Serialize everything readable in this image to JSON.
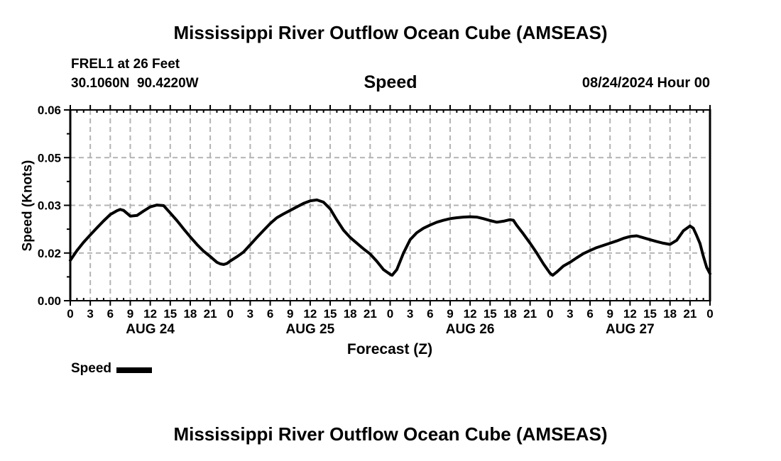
{
  "header": {
    "title": "Mississippi River Outflow Ocean Cube (AMSEAS)",
    "station": "FREL1 at 26 Feet",
    "coords": "30.1060N  90.4220W",
    "plot_label": "Speed",
    "datetime": "08/24/2024 Hour 00"
  },
  "axes": {
    "ylabel": "Speed (Knots)",
    "xlabel": "Forecast (Z)"
  },
  "legend": {
    "label": "Speed",
    "color": "#000000"
  },
  "footer": {
    "title": "Mississippi River Outflow Ocean Cube (AMSEAS)"
  },
  "colors": {
    "line": "#000000",
    "grid": "#b3b3b3",
    "background": "#ffffff",
    "text": "#000000"
  },
  "chart_data": {
    "type": "line",
    "title": "Mississippi River Outflow Ocean Cube (AMSEAS)",
    "station": "FREL1 at 26 Feet",
    "location": "30.1060N  90.4220W",
    "variable": "Speed",
    "forecast_start": "08/24/2024 Hour 00",
    "xlabel": "Forecast (Z)",
    "ylabel": "Speed (Knots)",
    "xlim_hours": [
      0,
      96
    ],
    "ylim": [
      0,
      0.06
    ],
    "grid": "dashed-gray",
    "legend_position": "bottom-left",
    "y_ticks": [
      {
        "value": 0.0,
        "label": "0.00"
      },
      {
        "value": 0.015,
        "label": "0.02"
      },
      {
        "value": 0.03,
        "label": "0.03"
      },
      {
        "value": 0.045,
        "label": "0.05"
      },
      {
        "value": 0.06,
        "label": "0.06"
      }
    ],
    "y_minor_tick_values": [
      0.0075,
      0.0225,
      0.0375,
      0.0525
    ],
    "x_ticks": [
      {
        "hour": 0,
        "label": "0"
      },
      {
        "hour": 3,
        "label": "3"
      },
      {
        "hour": 6,
        "label": "6"
      },
      {
        "hour": 9,
        "label": "9"
      },
      {
        "hour": 12,
        "label": "12"
      },
      {
        "hour": 15,
        "label": "15"
      },
      {
        "hour": 18,
        "label": "18"
      },
      {
        "hour": 21,
        "label": "21"
      },
      {
        "hour": 24,
        "label": "0"
      },
      {
        "hour": 27,
        "label": "3"
      },
      {
        "hour": 30,
        "label": "6"
      },
      {
        "hour": 33,
        "label": "9"
      },
      {
        "hour": 36,
        "label": "12"
      },
      {
        "hour": 39,
        "label": "15"
      },
      {
        "hour": 42,
        "label": "18"
      },
      {
        "hour": 45,
        "label": "21"
      },
      {
        "hour": 48,
        "label": "0"
      },
      {
        "hour": 51,
        "label": "3"
      },
      {
        "hour": 54,
        "label": "6"
      },
      {
        "hour": 57,
        "label": "9"
      },
      {
        "hour": 60,
        "label": "12"
      },
      {
        "hour": 63,
        "label": "15"
      },
      {
        "hour": 66,
        "label": "18"
      },
      {
        "hour": 69,
        "label": "21"
      },
      {
        "hour": 72,
        "label": "0"
      },
      {
        "hour": 75,
        "label": "3"
      },
      {
        "hour": 78,
        "label": "6"
      },
      {
        "hour": 81,
        "label": "9"
      },
      {
        "hour": 84,
        "label": "12"
      },
      {
        "hour": 87,
        "label": "15"
      },
      {
        "hour": 90,
        "label": "18"
      },
      {
        "hour": 93,
        "label": "21"
      },
      {
        "hour": 96,
        "label": "0"
      }
    ],
    "x_minor_tick_step_hours": 1,
    "day_labels": [
      {
        "hour": 12,
        "label": "AUG 24"
      },
      {
        "hour": 36,
        "label": "AUG 25"
      },
      {
        "hour": 60,
        "label": "AUG 26"
      },
      {
        "hour": 84,
        "label": "AUG 27"
      }
    ],
    "series": [
      {
        "name": "Speed",
        "color": "#000000",
        "points": [
          [
            0,
            0.0127
          ],
          [
            1,
            0.0158
          ],
          [
            2,
            0.0184
          ],
          [
            3,
            0.0207
          ],
          [
            4,
            0.0229
          ],
          [
            5,
            0.0251
          ],
          [
            6,
            0.0271
          ],
          [
            7,
            0.0283
          ],
          [
            7.5,
            0.0287
          ],
          [
            8,
            0.0284
          ],
          [
            9,
            0.0266
          ],
          [
            10,
            0.0268
          ],
          [
            11,
            0.0282
          ],
          [
            12,
            0.0295
          ],
          [
            13,
            0.0301
          ],
          [
            14,
            0.0299
          ],
          [
            15,
            0.0276
          ],
          [
            16,
            0.0252
          ],
          [
            17,
            0.0226
          ],
          [
            18,
            0.0201
          ],
          [
            19,
            0.0177
          ],
          [
            20,
            0.0156
          ],
          [
            21,
            0.0139
          ],
          [
            22,
            0.0121
          ],
          [
            22.5,
            0.0116
          ],
          [
            23,
            0.0114
          ],
          [
            23.5,
            0.0117
          ],
          [
            24,
            0.0125
          ],
          [
            25,
            0.0138
          ],
          [
            26,
            0.0153
          ],
          [
            27,
            0.0176
          ],
          [
            28,
            0.0199
          ],
          [
            29,
            0.0221
          ],
          [
            30,
            0.0243
          ],
          [
            31,
            0.0261
          ],
          [
            32,
            0.0273
          ],
          [
            33,
            0.0284
          ],
          [
            34,
            0.0295
          ],
          [
            35,
            0.0306
          ],
          [
            36,
            0.0314
          ],
          [
            37,
            0.0317
          ],
          [
            38,
            0.031
          ],
          [
            39,
            0.0289
          ],
          [
            40,
            0.0254
          ],
          [
            41,
            0.0222
          ],
          [
            42,
            0.0199
          ],
          [
            43,
            0.0181
          ],
          [
            44,
            0.0163
          ],
          [
            45,
            0.0147
          ],
          [
            46,
            0.0124
          ],
          [
            47,
            0.0098
          ],
          [
            48,
            0.0083
          ],
          [
            48.3,
            0.008
          ],
          [
            49,
            0.0098
          ],
          [
            50,
            0.015
          ],
          [
            51,
            0.0192
          ],
          [
            52,
            0.0214
          ],
          [
            53,
            0.0228
          ],
          [
            54,
            0.0238
          ],
          [
            55,
            0.0247
          ],
          [
            56,
            0.0253
          ],
          [
            57,
            0.0258
          ],
          [
            58,
            0.0261
          ],
          [
            59,
            0.0263
          ],
          [
            60,
            0.0264
          ],
          [
            61,
            0.0263
          ],
          [
            62,
            0.0258
          ],
          [
            63,
            0.0252
          ],
          [
            64,
            0.0247
          ],
          [
            65,
            0.025
          ],
          [
            66,
            0.0255
          ],
          [
            66.5,
            0.0253
          ],
          [
            67,
            0.0237
          ],
          [
            68,
            0.021
          ],
          [
            69,
            0.0181
          ],
          [
            70,
            0.015
          ],
          [
            71,
            0.0116
          ],
          [
            72,
            0.0086
          ],
          [
            72.4,
            0.008
          ],
          [
            73,
            0.009
          ],
          [
            74,
            0.0109
          ],
          [
            75,
            0.0121
          ],
          [
            76,
            0.0135
          ],
          [
            77,
            0.0148
          ],
          [
            78,
            0.0158
          ],
          [
            79,
            0.0167
          ],
          [
            80,
            0.0174
          ],
          [
            81,
            0.0181
          ],
          [
            82,
            0.0188
          ],
          [
            83,
            0.0196
          ],
          [
            84,
            0.0202
          ],
          [
            85,
            0.0204
          ],
          [
            86,
            0.0198
          ],
          [
            87,
            0.0192
          ],
          [
            88,
            0.0186
          ],
          [
            89,
            0.0181
          ],
          [
            90,
            0.0177
          ],
          [
            91,
            0.019
          ],
          [
            92,
            0.022
          ],
          [
            93,
            0.0235
          ],
          [
            93.5,
            0.0228
          ],
          [
            94,
            0.0205
          ],
          [
            94.5,
            0.018
          ],
          [
            95,
            0.014
          ],
          [
            95.5,
            0.0105
          ],
          [
            96,
            0.0085
          ]
        ]
      }
    ]
  }
}
